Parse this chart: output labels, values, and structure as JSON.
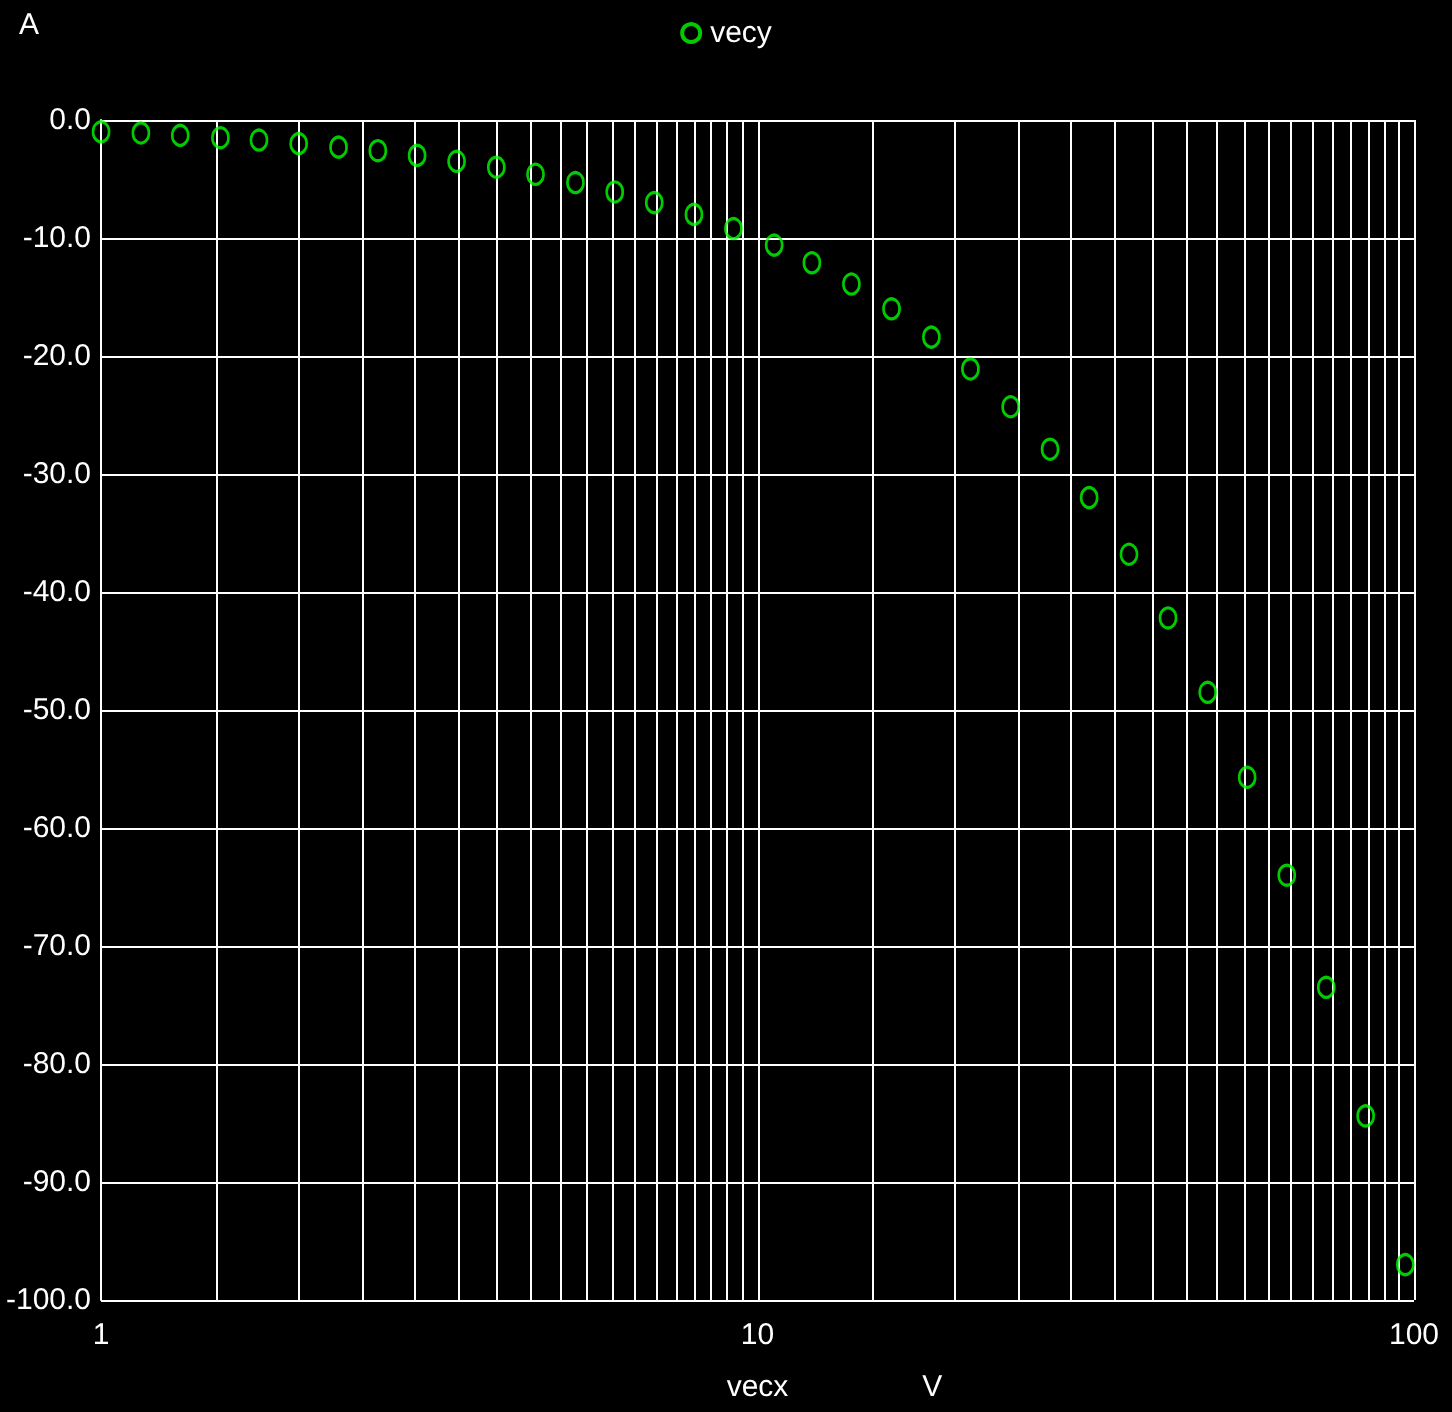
{
  "chart_data": {
    "type": "scatter",
    "xlabel": "vecx V",
    "ylabel": "A",
    "x": [
      1,
      1.15,
      1.32,
      1.52,
      1.74,
      2,
      2.3,
      2.64,
      3.03,
      3.48,
      4,
      4.59,
      5.28,
      6.06,
      6.96,
      8,
      9.19,
      10.6,
      12.1,
      13.9,
      16,
      18.4,
      21.1,
      24.3,
      27.9,
      32,
      36.8,
      42.2,
      48.5,
      55.7,
      64,
      73.5,
      84.4,
      97
    ],
    "series": [
      {
        "name": "vecy",
        "color": "#00ff00",
        "values": [
          -1,
          -1.1,
          -1.3,
          -1.5,
          -1.7,
          -2,
          -2.3,
          -2.6,
          -3,
          -3.5,
          -4,
          -4.6,
          -5.3,
          -6.1,
          -7,
          -8,
          -9.2,
          -10.6,
          -12.1,
          -13.9,
          -16,
          -18.4,
          -21.1,
          -24.3,
          -27.9,
          -32,
          -36.8,
          -42.2,
          -48.5,
          -55.7,
          -64,
          -73.5,
          -84.4,
          -97
        ]
      }
    ],
    "xlim": [
      1,
      100
    ],
    "xticks": [
      1,
      {
        "value": 1.5,
        "label": null
      },
      {
        "value": 2,
        "label": null
      },
      {
        "value": 2.5,
        "label": null
      },
      {
        "value": 3,
        "label": null
      },
      {
        "value": 3.5,
        "label": null
      },
      {
        "value": 4,
        "label": null
      },
      {
        "value": 4.5,
        "label": null
      },
      {
        "value": 5,
        "label": null
      },
      {
        "value": 5.5,
        "label": null
      },
      {
        "value": 6,
        "label": null
      },
      {
        "value": 6.5,
        "label": null
      },
      {
        "value": 7,
        "label": null
      },
      {
        "value": 7.5,
        "label": null
      },
      {
        "value": 8,
        "label": null
      },
      {
        "value": 8.5,
        "label": null
      },
      {
        "value": 9,
        "label": null
      },
      {
        "value": 9.5,
        "label": null
      },
      10,
      {
        "value": 15,
        "label": null
      },
      {
        "value": 20,
        "label": null
      },
      {
        "value": 25,
        "label": null
      },
      {
        "value": 30,
        "label": null
      },
      {
        "value": 35,
        "label": null
      },
      {
        "value": 40,
        "label": null
      },
      {
        "value": 45,
        "label": null
      },
      {
        "value": 50,
        "label": null
      },
      {
        "value": 55,
        "label": null
      },
      {
        "value": 60,
        "label": null
      },
      {
        "value": 65,
        "label": null
      },
      {
        "value": 70,
        "label": null
      },
      {
        "value": 75,
        "label": null
      },
      {
        "value": 80,
        "label": null
      },
      {
        "value": 85,
        "label": null
      },
      {
        "value": 90,
        "label": null
      },
      {
        "value": 95,
        "label": null
      },
      100
    ],
    "ylim": [
      -100,
      0
    ],
    "yticks": [
      {
        "value": -100,
        "label": "-100.0"
      },
      {
        "value": -90,
        "label": "-90.0"
      },
      {
        "value": -80,
        "label": "-80.0"
      },
      {
        "value": -70,
        "label": "-70.0"
      },
      {
        "value": -60,
        "label": "-60.0"
      },
      {
        "value": -50,
        "label": "-50.0"
      },
      {
        "value": -40,
        "label": "-40.0"
      },
      {
        "value": -30,
        "label": "-30.0"
      },
      {
        "value": -20,
        "label": "-20.0"
      },
      {
        "value": -10,
        "label": "-10.0"
      },
      {
        "value": 0,
        "label": "0.0"
      }
    ],
    "log": "x",
    "grid": true,
    "legend": "top",
    "marker": "circle"
  }
}
